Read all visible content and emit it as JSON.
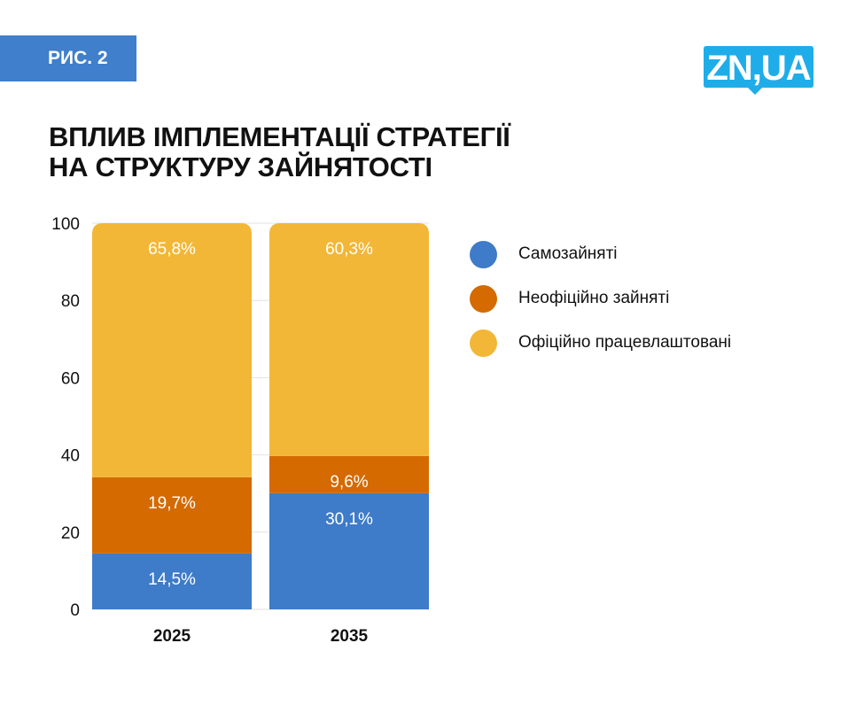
{
  "figure_label": "РИС. 2",
  "logo_text": "ZN,UA",
  "title_lines": [
    "ВПЛИВ ІМПЛЕМЕНТАЦІЇ СТРАТЕГІЇ",
    "НА СТРУКТУРУ ЗАЙНЯТОСТІ"
  ],
  "colors": {
    "badge": "#3f7fcb",
    "logo": "#1fade9",
    "self_employed": "#3e7bc8",
    "informal": "#d46a00",
    "formal": "#f2b736"
  },
  "chart_data": {
    "type": "bar",
    "stacked": true,
    "title": "ВПЛИВ ІМПЛЕМЕНТАЦІЇ СТРАТЕГІЇ НА СТРУКТУРУ ЗАЙНЯТОСТІ",
    "categories": [
      "2025",
      "2035"
    ],
    "series": [
      {
        "name": "Самозайняті",
        "color": "#3e7bc8",
        "values": [
          14.5,
          30.1
        ],
        "labels": [
          "14,5%",
          "30,1%"
        ]
      },
      {
        "name": "Неофіційно зайняті",
        "color": "#d46a00",
        "values": [
          19.7,
          9.6
        ],
        "labels": [
          "19,7%",
          "9,6%"
        ]
      },
      {
        "name": "Офіційно працевлаштовані",
        "color": "#f2b736",
        "values": [
          65.8,
          60.3
        ],
        "labels": [
          "65,8%",
          "60,3%"
        ]
      }
    ],
    "ylim": [
      0,
      100
    ],
    "yticks": [
      "0",
      "20",
      "40",
      "60",
      "80",
      "100"
    ],
    "grid": true,
    "legend_position": "right",
    "xlabel": "",
    "ylabel": ""
  }
}
